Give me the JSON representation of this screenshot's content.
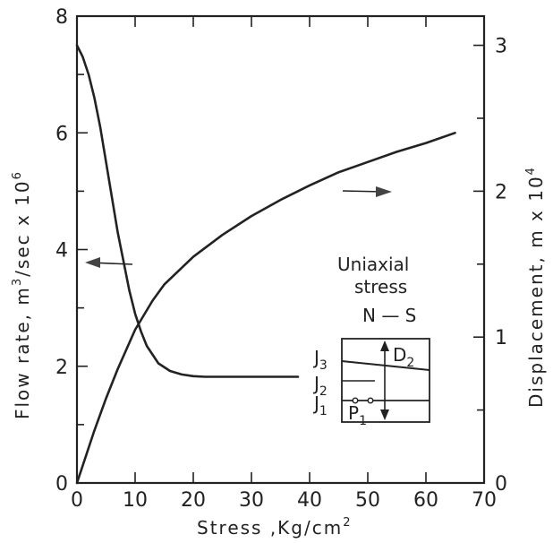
{
  "chart_data": {
    "type": "line",
    "xlabel": "Stress ,Kg/cm",
    "xlabel_sup": "2",
    "ylabel_left": "Flow rate, m",
    "ylabel_left_sup1": "3",
    "ylabel_left_mid": "/sec x 10",
    "ylabel_left_sup2": "6",
    "ylabel_right": "Displacement, m x 10",
    "ylabel_right_sup": "4",
    "xlim": [
      0,
      70
    ],
    "ylim_left": [
      0,
      8
    ],
    "ylim_right": [
      0,
      3.2
    ],
    "x_ticks": [
      0,
      10,
      20,
      30,
      40,
      50,
      60,
      70
    ],
    "y_left_ticks": [
      0,
      2,
      4,
      6,
      8
    ],
    "y_right_ticks": [
      0,
      1,
      2,
      3
    ],
    "series": [
      {
        "axis": "left",
        "x": [
          0,
          1,
          2,
          3,
          4,
          5,
          6,
          7,
          8,
          9,
          10,
          11,
          12,
          14,
          16,
          18,
          20,
          22,
          25,
          30,
          35,
          38
        ],
        "y": [
          7.5,
          7.3,
          7.0,
          6.6,
          6.1,
          5.5,
          4.9,
          4.3,
          3.8,
          3.3,
          2.9,
          2.6,
          2.35,
          2.05,
          1.92,
          1.86,
          1.83,
          1.82,
          1.82,
          1.82,
          1.82,
          1.82
        ]
      },
      {
        "axis": "right",
        "x": [
          0,
          1,
          2,
          3,
          5,
          7,
          10,
          13,
          15,
          20,
          25,
          30,
          35,
          40,
          45,
          50,
          55,
          60,
          65
        ],
        "y": [
          0.0,
          0.12,
          0.24,
          0.36,
          0.58,
          0.78,
          1.05,
          1.25,
          1.36,
          1.55,
          1.7,
          1.83,
          1.94,
          2.04,
          2.13,
          2.2,
          2.27,
          2.33,
          2.4
        ]
      }
    ],
    "annotations": {
      "uniaxial": "Uniaxial",
      "stress": "stress",
      "orientation": "N — S",
      "joint_j": "J",
      "joint_j3_sub": "3",
      "joint_j2_sub": "2",
      "joint_j1_sub": "1",
      "label_d": "D",
      "label_d_sub": "2",
      "label_p": "P",
      "label_p_sub": "1"
    }
  }
}
